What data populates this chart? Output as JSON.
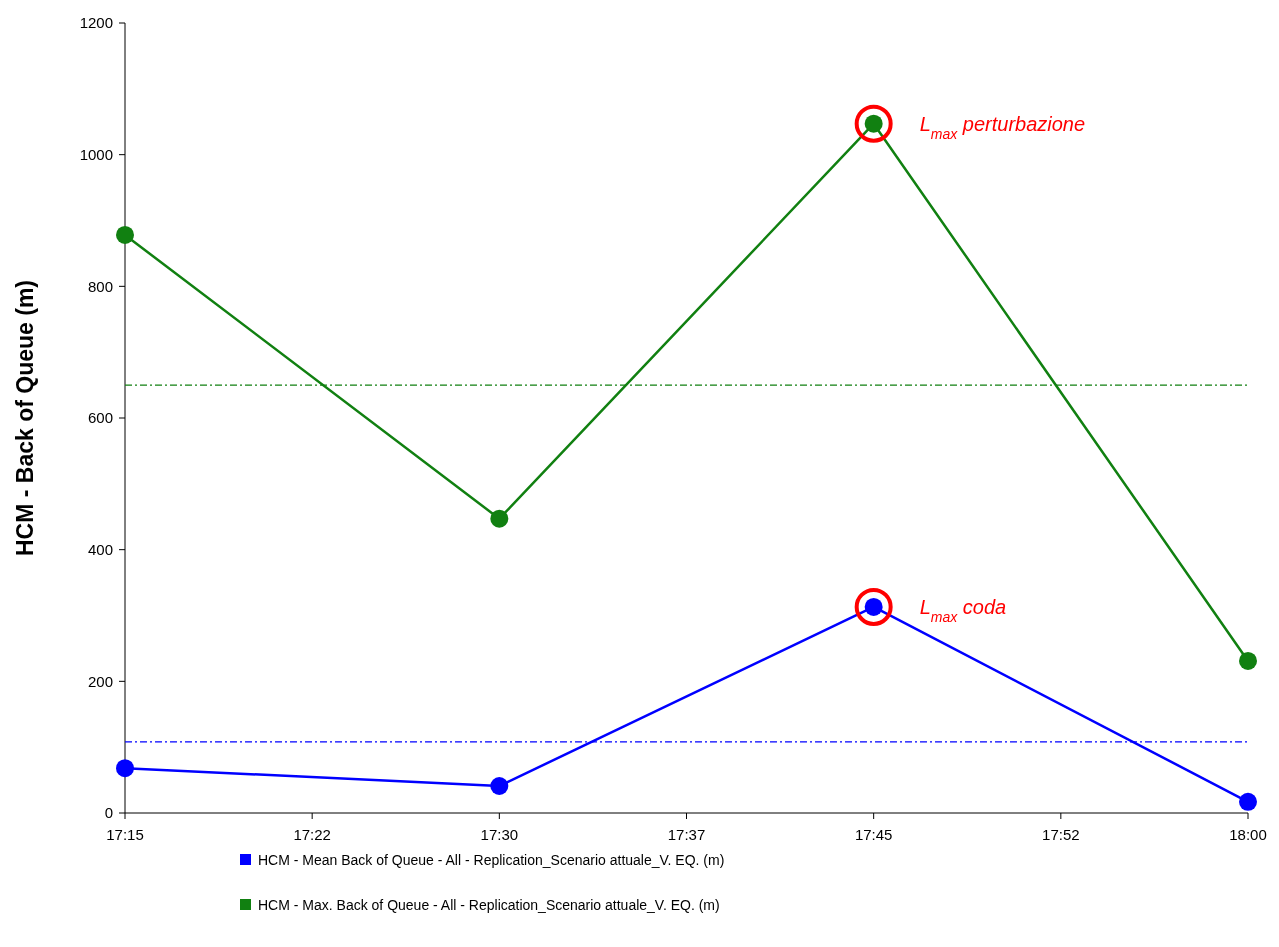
{
  "chart_data": {
    "type": "line",
    "ylabel": "HCM - Back of Queue (m)",
    "x": [
      17.25,
      17.5,
      17.75,
      18
    ],
    "series": [
      {
        "name": "HCM - Mean Back of Queue - All - Replication_Scenario attuale_V. EQ. (m)",
        "color": "#0000ff",
        "values": [
          68,
          41,
          313,
          17
        ]
      },
      {
        "name": "HCM - Max. Back of Queue - All - Replication_Scenario attuale_V. EQ. (m)",
        "color": "#118011",
        "values": [
          878,
          447,
          1047,
          231
        ]
      }
    ],
    "xlim": [
      17.25,
      18
    ],
    "xticks": [
      {
        "value": 17.25,
        "label": "17:15"
      },
      {
        "value": 17.375,
        "label": "17:22"
      },
      {
        "value": 17.5,
        "label": "17:30"
      },
      {
        "value": 17.625,
        "label": "17:37"
      },
      {
        "value": 17.75,
        "label": "17:45"
      },
      {
        "value": 17.875,
        "label": "17:52"
      },
      {
        "value": 18,
        "label": "18:00"
      }
    ],
    "ylim": [
      0,
      1200
    ],
    "yticks": [
      0,
      200,
      400,
      600,
      800,
      1000,
      1200
    ],
    "ref_lines": [
      {
        "axis": "y",
        "value": 650,
        "color": "#118011",
        "line_style": "dashed"
      },
      {
        "axis": "y",
        "value": 108,
        "color": "#0000ff",
        "line_style": "dashed"
      }
    ],
    "annotations": [
      {
        "text": "L$_{max}$ perturbazione",
        "x": 17.75,
        "y": 1047
      },
      {
        "text": "L$_{max}$ coda",
        "x": 17.75,
        "y": 313
      }
    ],
    "grid": false,
    "legend": "bottom",
    "marker": "circle",
    "line_style": "solid"
  }
}
